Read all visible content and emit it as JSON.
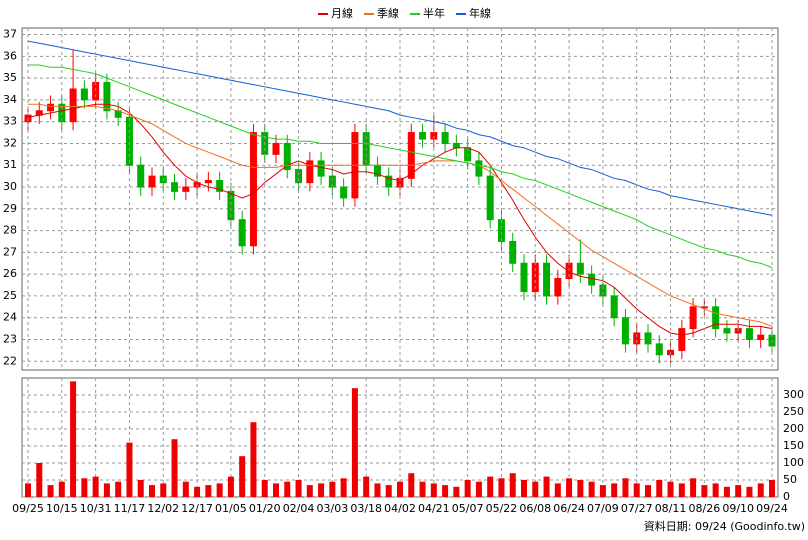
{
  "note": "資料日期: 09/24 (Goodinfo.tw)",
  "chart_data": [
    {
      "type": "candlestick",
      "up_color": "#ff0000",
      "down_color": "#00b000",
      "open": [
        33.0,
        33.3,
        33.5,
        33.8,
        33.0,
        34.5,
        34.0,
        34.8,
        33.5,
        33.2,
        31.0,
        30.0,
        30.5,
        30.2,
        29.8,
        30.0,
        30.2,
        30.3,
        29.8,
        28.5,
        27.3,
        32.5,
        31.5,
        32.0,
        30.8,
        30.2,
        31.2,
        30.5,
        30.0,
        29.5,
        32.5,
        31.0,
        30.5,
        30.0,
        30.4,
        32.5,
        32.2,
        32.5,
        32.0,
        31.8,
        31.2,
        30.5,
        28.5,
        27.5,
        26.5,
        25.2,
        26.5,
        25.0,
        25.8,
        26.5,
        26.0,
        25.5,
        25.0,
        24.0,
        22.8,
        23.3,
        22.8,
        22.3,
        22.5,
        23.5,
        24.5,
        24.5,
        23.5,
        23.3,
        23.5,
        23.0,
        23.2
      ],
      "high": [
        33.7,
        33.9,
        34.2,
        34.2,
        36.3,
        34.9,
        35.2,
        35.2,
        33.9,
        33.6,
        31.4,
        30.9,
        30.9,
        30.6,
        30.4,
        30.6,
        30.7,
        30.7,
        30.2,
        28.9,
        32.9,
        32.9,
        32.4,
        32.4,
        31.2,
        31.6,
        31.6,
        30.9,
        30.4,
        32.9,
        32.9,
        31.4,
        30.9,
        30.8,
        32.9,
        32.9,
        33.3,
        32.9,
        32.4,
        32.2,
        31.6,
        30.9,
        28.9,
        27.9,
        26.9,
        26.9,
        26.9,
        26.2,
        26.9,
        27.6,
        26.4,
        25.9,
        25.4,
        24.4,
        23.7,
        23.7,
        23.2,
        22.9,
        23.9,
        24.9,
        24.9,
        24.9,
        23.9,
        23.9,
        23.9,
        23.6,
        23.6
      ],
      "low": [
        32.6,
        32.9,
        33.1,
        32.6,
        32.6,
        33.6,
        33.6,
        33.1,
        32.8,
        30.6,
        29.6,
        29.6,
        29.8,
        29.4,
        29.4,
        29.6,
        29.8,
        29.4,
        28.1,
        26.9,
        26.9,
        31.1,
        31.1,
        30.4,
        29.8,
        29.8,
        30.1,
        29.6,
        29.1,
        29.1,
        30.6,
        30.1,
        29.6,
        29.6,
        30.0,
        31.8,
        31.8,
        31.6,
        31.4,
        30.8,
        30.1,
        28.1,
        27.1,
        26.1,
        24.8,
        24.8,
        24.6,
        24.6,
        25.4,
        25.6,
        25.1,
        24.6,
        23.6,
        22.4,
        22.4,
        22.4,
        21.9,
        21.9,
        22.1,
        23.1,
        24.1,
        23.1,
        22.9,
        22.9,
        22.6,
        22.6,
        22.3
      ],
      "close": [
        33.3,
        33.5,
        33.8,
        33.0,
        34.5,
        34.0,
        34.8,
        33.5,
        33.2,
        31.0,
        30.0,
        30.5,
        30.2,
        29.8,
        30.0,
        30.2,
        30.3,
        29.8,
        28.5,
        27.3,
        32.5,
        31.5,
        32.0,
        30.8,
        30.2,
        31.2,
        30.5,
        30.0,
        29.5,
        32.5,
        31.0,
        30.5,
        30.0,
        30.4,
        32.5,
        32.2,
        32.5,
        32.0,
        31.8,
        31.2,
        30.5,
        28.5,
        27.5,
        26.5,
        25.2,
        26.5,
        25.0,
        25.8,
        26.5,
        26.0,
        25.5,
        25.0,
        24.0,
        22.8,
        23.3,
        22.8,
        22.3,
        22.5,
        23.5,
        24.5,
        24.5,
        23.5,
        23.3,
        23.5,
        23.0,
        23.2,
        22.7
      ],
      "series": [
        {
          "name": "月線",
          "color": "#e00000",
          "values": [
            33.2,
            33.3,
            33.4,
            33.5,
            33.6,
            33.7,
            33.8,
            33.8,
            33.7,
            33.4,
            32.9,
            32.3,
            31.6,
            31.0,
            30.5,
            30.2,
            30.0,
            29.9,
            29.7,
            29.5,
            29.7,
            30.2,
            30.6,
            31.0,
            31.2,
            31.0,
            30.9,
            30.8,
            30.6,
            30.7,
            30.7,
            30.6,
            30.4,
            30.3,
            30.6,
            31.0,
            31.3,
            31.6,
            31.8,
            31.8,
            31.6,
            31.0,
            30.2,
            29.4,
            28.5,
            27.7,
            27.0,
            26.5,
            26.1,
            25.9,
            25.8,
            25.7,
            25.4,
            24.9,
            24.4,
            24.0,
            23.6,
            23.3,
            23.2,
            23.3,
            23.5,
            23.7,
            23.7,
            23.7,
            23.6,
            23.6,
            23.5
          ]
        },
        {
          "name": "季線",
          "color": "#f07020",
          "values": [
            33.8,
            33.8,
            33.7,
            33.7,
            33.7,
            33.7,
            33.7,
            33.6,
            33.5,
            33.3,
            33.1,
            32.9,
            32.6,
            32.3,
            32.0,
            31.8,
            31.6,
            31.4,
            31.2,
            31.0,
            30.9,
            30.9,
            30.9,
            31.0,
            31.0,
            31.0,
            31.0,
            31.0,
            31.0,
            31.0,
            31.0,
            31.0,
            31.0,
            31.0,
            31.0,
            31.1,
            31.2,
            31.2,
            31.2,
            31.1,
            31.0,
            30.7,
            30.3,
            29.9,
            29.5,
            29.1,
            28.7,
            28.3,
            27.9,
            27.5,
            27.1,
            26.8,
            26.5,
            26.2,
            25.9,
            25.6,
            25.3,
            25.0,
            24.8,
            24.6,
            24.4,
            24.2,
            24.1,
            24.0,
            23.9,
            23.8,
            23.6
          ]
        },
        {
          "name": "半年",
          "color": "#20d020",
          "values": [
            35.6,
            35.6,
            35.5,
            35.5,
            35.4,
            35.3,
            35.2,
            35.0,
            34.8,
            34.6,
            34.4,
            34.2,
            34.0,
            33.8,
            33.6,
            33.4,
            33.2,
            33.0,
            32.8,
            32.6,
            32.4,
            32.3,
            32.2,
            32.2,
            32.1,
            32.1,
            32.0,
            32.0,
            32.0,
            32.0,
            32.0,
            31.9,
            31.8,
            31.7,
            31.6,
            31.5,
            31.4,
            31.3,
            31.2,
            31.1,
            31.0,
            30.9,
            30.7,
            30.6,
            30.4,
            30.3,
            30.1,
            29.9,
            29.7,
            29.5,
            29.3,
            29.1,
            28.9,
            28.7,
            28.5,
            28.2,
            28.0,
            27.8,
            27.6,
            27.4,
            27.2,
            27.1,
            26.9,
            26.8,
            26.6,
            26.5,
            26.3
          ]
        },
        {
          "name": "年線",
          "color": "#1060d0",
          "values": [
            36.7,
            36.6,
            36.5,
            36.4,
            36.3,
            36.2,
            36.1,
            36.0,
            35.9,
            35.8,
            35.7,
            35.6,
            35.5,
            35.4,
            35.3,
            35.2,
            35.1,
            35.0,
            34.9,
            34.8,
            34.7,
            34.6,
            34.5,
            34.4,
            34.3,
            34.2,
            34.1,
            34.0,
            33.9,
            33.8,
            33.7,
            33.6,
            33.5,
            33.3,
            33.2,
            33.1,
            33.0,
            32.9,
            32.7,
            32.6,
            32.4,
            32.3,
            32.1,
            31.9,
            31.8,
            31.6,
            31.4,
            31.3,
            31.1,
            30.9,
            30.8,
            30.6,
            30.4,
            30.3,
            30.1,
            29.9,
            29.8,
            29.6,
            29.5,
            29.4,
            29.3,
            29.2,
            29.1,
            29.0,
            28.9,
            28.8,
            28.7
          ]
        }
      ],
      "ylim": [
        21.6,
        37.3
      ],
      "yticks": [
        22,
        23,
        24,
        25,
        26,
        27,
        28,
        29,
        30,
        31,
        32,
        33,
        34,
        35,
        36,
        37
      ],
      "grid": true
    },
    {
      "type": "bar",
      "color": "#ee0000",
      "categories": [
        "09/25",
        null,
        null,
        "10/15",
        null,
        null,
        "10/31",
        null,
        null,
        "11/17",
        null,
        null,
        "12/02",
        null,
        null,
        "12/17",
        null,
        null,
        "01/05",
        null,
        null,
        "01/20",
        null,
        null,
        "02/04",
        null,
        null,
        "03/03",
        null,
        null,
        "03/18",
        null,
        null,
        "04/02",
        null,
        null,
        "04/21",
        null,
        null,
        "05/07",
        null,
        null,
        "05/22",
        null,
        null,
        "06/08",
        null,
        null,
        "06/24",
        null,
        null,
        "07/09",
        null,
        null,
        "07/27",
        null,
        null,
        "08/11",
        null,
        null,
        "08/26",
        null,
        null,
        "09/10",
        null,
        null,
        "09/24"
      ],
      "values": [
        40,
        100,
        35,
        45,
        340,
        55,
        60,
        40,
        45,
        160,
        50,
        35,
        40,
        170,
        45,
        30,
        35,
        40,
        60,
        120,
        220,
        50,
        40,
        45,
        50,
        35,
        40,
        45,
        55,
        320,
        60,
        40,
        35,
        45,
        70,
        45,
        40,
        35,
        30,
        50,
        45,
        60,
        55,
        70,
        50,
        45,
        60,
        40,
        55,
        50,
        45,
        35,
        40,
        55,
        40,
        35,
        50,
        45,
        40,
        55,
        35,
        40,
        30,
        35,
        30,
        40,
        50
      ],
      "ylim": [
        0,
        350
      ],
      "yticks": [
        0,
        50,
        100,
        150,
        200,
        250,
        300
      ],
      "grid": true
    }
  ]
}
